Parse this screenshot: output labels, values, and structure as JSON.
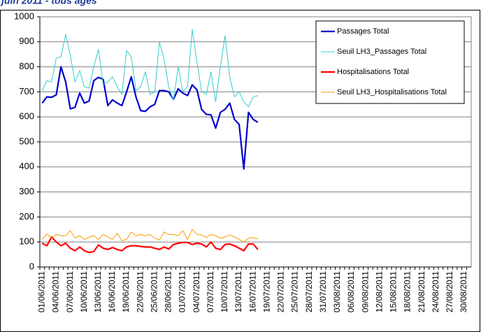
{
  "chart_data": {
    "type": "line",
    "title": "juin 2011 - tous âges",
    "categories": [
      "01/06/2011",
      null,
      null,
      "04/06/2011",
      null,
      null,
      "07/06/2011",
      null,
      null,
      "10/06/2011",
      null,
      null,
      "13/06/2011",
      null,
      null,
      "16/06/2011",
      null,
      null,
      "19/06/2011",
      null,
      null,
      "22/06/2011",
      null,
      null,
      "25/06/2011",
      null,
      null,
      "28/06/2011",
      null,
      null,
      "01/07/2011",
      null,
      null,
      "04/07/2011",
      null,
      null,
      "07/07/2011",
      null,
      null,
      "10/07/2011",
      null,
      null,
      "13/07/2011",
      null,
      null,
      "16/07/2011",
      null,
      null,
      "19/07/2011",
      null,
      null,
      "22/07/2011",
      null,
      null,
      "25/07/2011",
      null,
      null,
      "28/07/2011",
      null,
      null,
      "31/07/2011",
      null,
      null,
      "03/08/2011",
      null,
      null,
      "06/08/2011",
      null,
      null,
      "09/08/2011",
      null,
      null,
      "12/08/2011",
      null,
      null,
      "15/08/2011",
      null,
      null,
      "18/08/2011",
      null,
      null,
      "21/08/2011",
      null,
      null,
      "24/08/2011",
      null,
      null,
      "27/08/2011",
      null,
      null,
      "30/08/2011",
      null
    ],
    "series": [
      {
        "name": "Passages Total",
        "color": "#0000cc",
        "width": 2.2,
        "values": [
          655,
          680,
          678,
          688,
          800,
          740,
          632,
          638,
          695,
          655,
          663,
          745,
          758,
          750,
          645,
          668,
          655,
          645,
          700,
          760,
          680,
          625,
          622,
          640,
          650,
          705,
          705,
          700,
          670,
          712,
          695,
          685,
          728,
          708,
          630,
          610,
          608,
          555,
          618,
          630,
          655,
          590,
          570,
          392,
          618,
          590,
          578,
          null,
          null,
          null,
          null,
          null,
          null,
          null,
          null,
          null,
          null,
          null,
          null,
          null,
          null,
          null,
          null,
          null,
          null,
          null,
          null,
          null,
          null,
          null,
          null,
          null,
          null,
          null,
          null,
          null,
          null,
          null,
          null,
          null,
          null,
          null,
          null,
          null,
          null,
          null,
          null,
          null,
          null,
          null,
          null,
          null
        ]
      },
      {
        "name": "Seuil LH3_Passages Total",
        "color": "#33cccc",
        "width": 1,
        "values": [
          705,
          745,
          740,
          835,
          840,
          930,
          845,
          740,
          785,
          720,
          715,
          800,
          870,
          730,
          740,
          760,
          720,
          690,
          865,
          840,
          705,
          720,
          780,
          690,
          700,
          900,
          830,
          720,
          665,
          800,
          700,
          720,
          950,
          820,
          700,
          690,
          780,
          660,
          800,
          925,
          760,
          680,
          700,
          660,
          640,
          680,
          685,
          null,
          null,
          null,
          null,
          null,
          null,
          null,
          null,
          null,
          null,
          null,
          null,
          null,
          null,
          null,
          null,
          null,
          null,
          null,
          null,
          null,
          null,
          null,
          null,
          null,
          null,
          null,
          null,
          null,
          null,
          null,
          null,
          null,
          null,
          null,
          null,
          null,
          null,
          null,
          null,
          null,
          null,
          null,
          null,
          null
        ]
      },
      {
        "name": "Hospitalisations Total",
        "color": "#ff0000",
        "width": 2.2,
        "values": [
          95,
          85,
          120,
          100,
          85,
          95,
          75,
          65,
          80,
          65,
          58,
          62,
          88,
          75,
          70,
          78,
          70,
          65,
          80,
          85,
          85,
          82,
          80,
          80,
          75,
          70,
          80,
          72,
          90,
          95,
          98,
          98,
          90,
          95,
          92,
          80,
          100,
          75,
          70,
          90,
          92,
          85,
          75,
          65,
          92,
          92,
          70,
          null,
          null,
          null,
          null,
          null,
          null,
          null,
          null,
          null,
          null,
          null,
          null,
          null,
          null,
          null,
          null,
          null,
          null,
          null,
          null,
          null,
          null,
          null,
          null,
          null,
          null,
          null,
          null,
          null,
          null,
          null,
          null,
          null,
          null,
          null,
          null,
          null,
          null,
          null,
          null,
          null,
          null,
          null,
          null,
          null
        ]
      },
      {
        "name": "Seuil LH3_Hospitalisations Total",
        "color": "#ff9900",
        "width": 1,
        "values": [
          110,
          132,
          115,
          130,
          125,
          125,
          145,
          115,
          125,
          110,
          120,
          125,
          110,
          130,
          120,
          110,
          135,
          105,
          110,
          140,
          125,
          130,
          125,
          130,
          115,
          108,
          140,
          130,
          130,
          125,
          145,
          110,
          150,
          130,
          128,
          118,
          130,
          125,
          115,
          120,
          128,
          120,
          110,
          100,
          115,
          118,
          112,
          null,
          null,
          null,
          null,
          null,
          null,
          null,
          null,
          null,
          null,
          null,
          null,
          null,
          null,
          null,
          null,
          null,
          null,
          null,
          null,
          null,
          null,
          null,
          null,
          null,
          null,
          null,
          null,
          null,
          null,
          null,
          null,
          null,
          null,
          null,
          null,
          null,
          null,
          null,
          null,
          null,
          null,
          null,
          null,
          null
        ]
      }
    ],
    "ylim": [
      0,
      1000
    ],
    "yticks": [
      0,
      100,
      200,
      300,
      400,
      500,
      600,
      700,
      800,
      900,
      1000
    ],
    "grid": true,
    "legend": "top-right"
  }
}
